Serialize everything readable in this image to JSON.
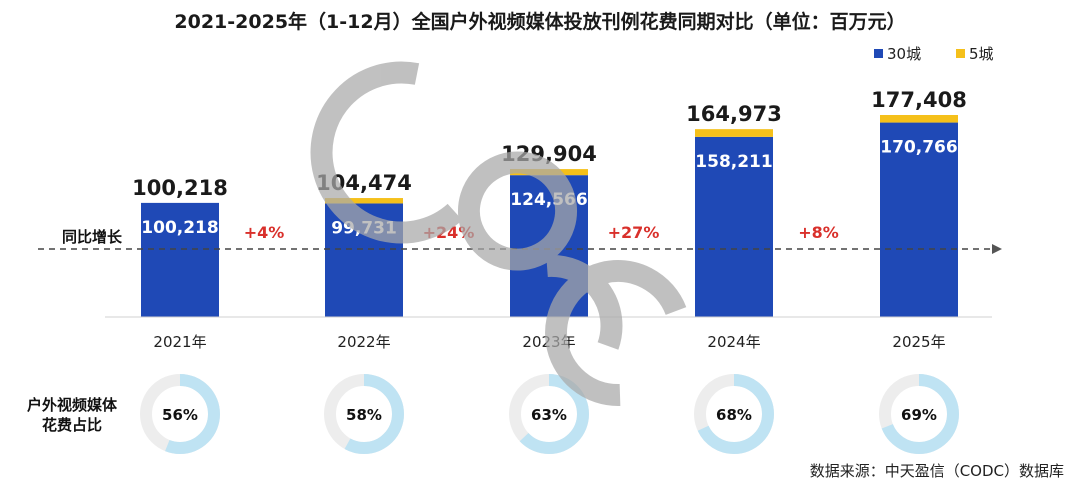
{
  "title": "2021-2025年（1-12月）全国户外视频媒体投放刊例花费同期对比（单位：百万元）",
  "legend": {
    "series_30": "30城",
    "series_5": "5城"
  },
  "colors": {
    "series_30": "#1f49b6",
    "series_5": "#f5c01a",
    "growth_text": "#d9302b",
    "donut_fill": "#bfe3f3",
    "donut_track": "#ededed"
  },
  "growth_label": "同比增长",
  "share_label_line1": "户外视频媒体",
  "share_label_line2": "花费占比",
  "source": "数据来源：中天盈信（CODC）数据库",
  "chart_data": {
    "type": "bar",
    "stacked": true,
    "title": "2021-2025年（1-12月）全国户外视频媒体投放刊例花费同期对比（单位：百万元）",
    "categories": [
      "2021年",
      "2022年",
      "2023年",
      "2024年",
      "2025年"
    ],
    "series": [
      {
        "name": "30城",
        "values": [
          100218,
          99731,
          124566,
          158211,
          170766
        ]
      },
      {
        "name": "5城",
        "values": [
          0,
          4743,
          5338,
          6762,
          6642
        ]
      }
    ],
    "totals": [
      100218,
      104474,
      129904,
      164973,
      177408
    ],
    "total_labels": [
      "100,218",
      "104,474",
      "129,904",
      "164,973",
      "177,408"
    ],
    "inner_labels": [
      "100,218",
      "99,731",
      "124,566",
      "158,211",
      "170,766"
    ],
    "growth": [
      "+4%",
      "+24%",
      "+27%",
      "+8%"
    ],
    "share": [
      56,
      58,
      63,
      68,
      69
    ],
    "share_labels": [
      "56%",
      "58%",
      "63%",
      "68%",
      "69%"
    ],
    "legend_position": "top-right",
    "grid": false
  }
}
